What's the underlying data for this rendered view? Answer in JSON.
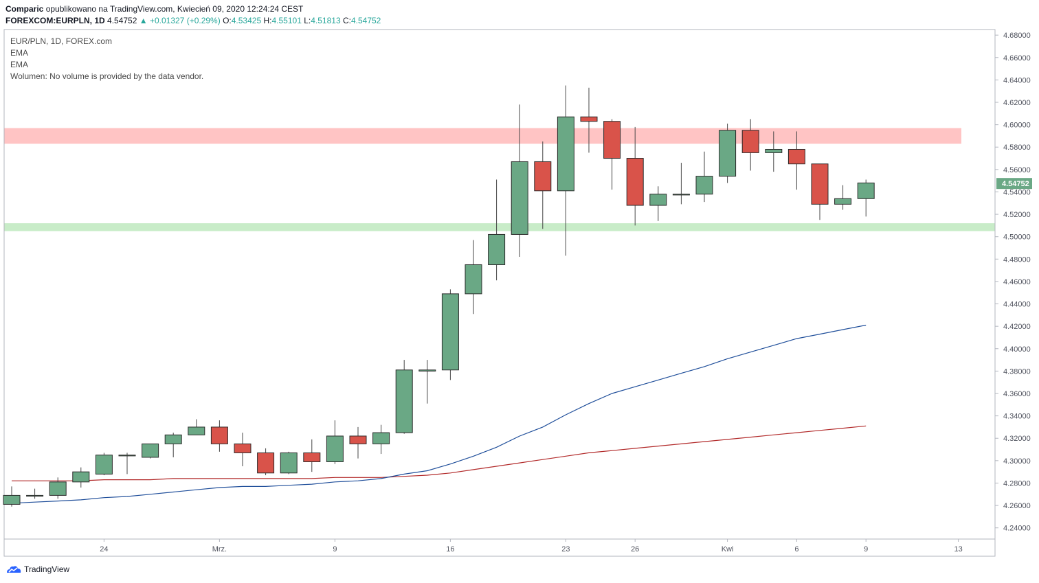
{
  "header": {
    "author": "Comparic",
    "published": "opublikowano na TradingView.com, Kwiecień 09, 2020 12:24:24 CEST",
    "symbol": "FOREXCOM:EURPLN, 1D",
    "last": "4.54752",
    "change": "▲ +0.01327 (+0.29%)",
    "o_label": "O:",
    "o": "4.53425",
    "h_label": "H:",
    "h": "4.55101",
    "l_label": "L:",
    "l": "4.51813",
    "c_label": "C:",
    "c": "4.54752"
  },
  "legend": {
    "title": "EUR/PLN, 1D, FOREX.com",
    "ema1": "EMA",
    "ema2": "EMA",
    "volume": "Wolumen: No volume is provided by the data vendor."
  },
  "footer": {
    "brand": "TradingView"
  },
  "chart_data": {
    "type": "candlestick",
    "ylim": [
      4.23,
      4.685
    ],
    "y_ticks": [
      "4.24000",
      "4.26000",
      "4.28000",
      "4.30000",
      "4.32000",
      "4.34000",
      "4.36000",
      "4.38000",
      "4.40000",
      "4.42000",
      "4.44000",
      "4.46000",
      "4.48000",
      "4.50000",
      "4.52000",
      "4.54000",
      "4.56000",
      "4.58000",
      "4.60000",
      "4.62000",
      "4.64000",
      "4.66000",
      "4.68000"
    ],
    "x_ticks": [
      {
        "label": "24",
        "i": 4
      },
      {
        "label": "Mrz.",
        "i": 9
      },
      {
        "label": "9",
        "i": 14
      },
      {
        "label": "16",
        "i": 19
      },
      {
        "label": "23",
        "i": 24
      },
      {
        "label": "26",
        "i": 27
      },
      {
        "label": "Kwi",
        "i": 31
      },
      {
        "label": "6",
        "i": 34
      },
      {
        "label": "9",
        "i": 37
      },
      {
        "label": "13",
        "i": 41
      }
    ],
    "candles": [
      {
        "o": 4.261,
        "h": 4.277,
        "l": 4.259,
        "c": 4.269
      },
      {
        "o": 4.269,
        "h": 4.275,
        "l": 4.266,
        "c": 4.269
      },
      {
        "o": 4.269,
        "h": 4.285,
        "l": 4.266,
        "c": 4.281
      },
      {
        "o": 4.281,
        "h": 4.294,
        "l": 4.276,
        "c": 4.29
      },
      {
        "o": 4.288,
        "h": 4.307,
        "l": 4.287,
        "c": 4.305
      },
      {
        "o": 4.305,
        "h": 4.307,
        "l": 4.288,
        "c": 4.305
      },
      {
        "o": 4.303,
        "h": 4.315,
        "l": 4.302,
        "c": 4.315
      },
      {
        "o": 4.315,
        "h": 4.325,
        "l": 4.303,
        "c": 4.323
      },
      {
        "o": 4.323,
        "h": 4.337,
        "l": 4.323,
        "c": 4.33
      },
      {
        "o": 4.33,
        "h": 4.336,
        "l": 4.308,
        "c": 4.315
      },
      {
        "o": 4.315,
        "h": 4.325,
        "l": 4.295,
        "c": 4.307
      },
      {
        "o": 4.307,
        "h": 4.311,
        "l": 4.287,
        "c": 4.289
      },
      {
        "o": 4.289,
        "h": 4.308,
        "l": 4.288,
        "c": 4.307
      },
      {
        "o": 4.307,
        "h": 4.319,
        "l": 4.29,
        "c": 4.299
      },
      {
        "o": 4.299,
        "h": 4.336,
        "l": 4.297,
        "c": 4.322
      },
      {
        "o": 4.322,
        "h": 4.33,
        "l": 4.302,
        "c": 4.315
      },
      {
        "o": 4.315,
        "h": 4.332,
        "l": 4.306,
        "c": 4.325
      },
      {
        "o": 4.325,
        "h": 4.39,
        "l": 4.324,
        "c": 4.381
      },
      {
        "o": 4.38,
        "h": 4.39,
        "l": 4.351,
        "c": 4.381
      },
      {
        "o": 4.381,
        "h": 4.453,
        "l": 4.372,
        "c": 4.449
      },
      {
        "o": 4.449,
        "h": 4.497,
        "l": 4.431,
        "c": 4.475
      },
      {
        "o": 4.475,
        "h": 4.551,
        "l": 4.461,
        "c": 4.502
      },
      {
        "o": 4.502,
        "h": 4.618,
        "l": 4.482,
        "c": 4.567
      },
      {
        "o": 4.567,
        "h": 4.585,
        "l": 4.507,
        "c": 4.541
      },
      {
        "o": 4.541,
        "h": 4.635,
        "l": 4.483,
        "c": 4.607
      },
      {
        "o": 4.607,
        "h": 4.633,
        "l": 4.575,
        "c": 4.603
      },
      {
        "o": 4.603,
        "h": 4.605,
        "l": 4.542,
        "c": 4.57
      },
      {
        "o": 4.57,
        "h": 4.598,
        "l": 4.51,
        "c": 4.528
      },
      {
        "o": 4.528,
        "h": 4.545,
        "l": 4.514,
        "c": 4.538
      },
      {
        "o": 4.538,
        "h": 4.566,
        "l": 4.529,
        "c": 4.538
      },
      {
        "o": 4.538,
        "h": 4.576,
        "l": 4.531,
        "c": 4.554
      },
      {
        "o": 4.554,
        "h": 4.601,
        "l": 4.548,
        "c": 4.595
      },
      {
        "o": 4.595,
        "h": 4.605,
        "l": 4.559,
        "c": 4.575
      },
      {
        "o": 4.575,
        "h": 4.594,
        "l": 4.558,
        "c": 4.578
      },
      {
        "o": 4.578,
        "h": 4.594,
        "l": 4.542,
        "c": 4.565
      },
      {
        "o": 4.565,
        "h": 4.565,
        "l": 4.515,
        "c": 4.529
      },
      {
        "o": 4.529,
        "h": 4.546,
        "l": 4.524,
        "c": 4.534
      },
      {
        "o": 4.534,
        "h": 4.551,
        "l": 4.518,
        "c": 4.548
      }
    ],
    "ema_fast": [
      4.262,
      4.263,
      4.264,
      4.265,
      4.267,
      4.268,
      4.27,
      4.272,
      4.274,
      4.276,
      4.277,
      4.277,
      4.278,
      4.279,
      4.281,
      4.282,
      4.284,
      4.288,
      4.291,
      4.297,
      4.304,
      4.312,
      4.322,
      4.33,
      4.341,
      4.351,
      4.36,
      4.366,
      4.372,
      4.378,
      4.384,
      4.391,
      4.397,
      4.403,
      4.409,
      4.413,
      4.417,
      4.421
    ],
    "ema_slow": [
      4.282,
      4.282,
      4.282,
      4.282,
      4.283,
      4.283,
      4.283,
      4.284,
      4.284,
      4.284,
      4.284,
      4.284,
      4.284,
      4.284,
      4.285,
      4.285,
      4.285,
      4.286,
      4.287,
      4.289,
      4.292,
      4.295,
      4.298,
      4.301,
      4.304,
      4.307,
      4.309,
      4.311,
      4.313,
      4.315,
      4.317,
      4.319,
      4.321,
      4.323,
      4.325,
      4.327,
      4.329,
      4.331
    ],
    "zones": [
      {
        "name": "resistance",
        "from": 4.583,
        "to": 4.597,
        "color": "#ffc4c4"
      },
      {
        "name": "support",
        "from": 4.505,
        "to": 4.512,
        "color": "#c8ecc8"
      }
    ],
    "last_price": "4.54752",
    "colors": {
      "up": "#6aa885",
      "down": "#d9534a",
      "ema_fast": "#1f4e9a",
      "ema_slow": "#b22a2a",
      "price_tag": "#6aa885"
    }
  }
}
